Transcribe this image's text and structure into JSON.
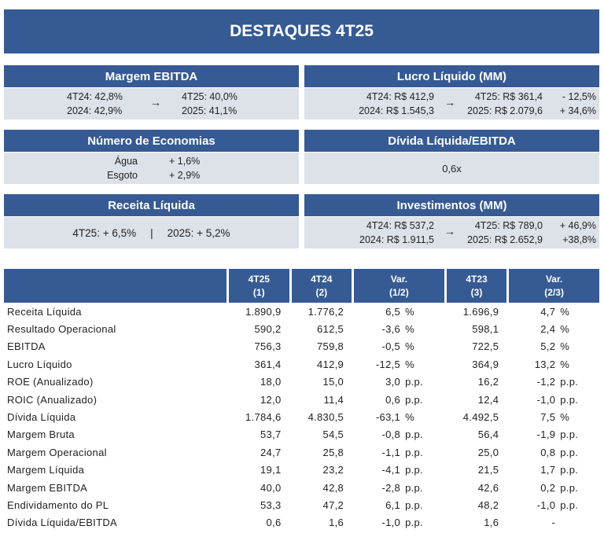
{
  "title": "DESTAQUES 4T25",
  "cards": {
    "margem_ebitda": {
      "title": "Margem EBITDA",
      "l1": "4T24:  42,8%",
      "l2": "2024:  42,9%",
      "r1": "4T25:  40,0%",
      "r2": "2025:  41,1%",
      "arrow": "→"
    },
    "lucro": {
      "title": "Lucro Líquido (MM)",
      "l1": "4T24: R$ 412,9",
      "l2": "2024: R$ 1.545,3",
      "r1": "4T25: R$ 361,4",
      "r2": "2025: R$ 2.079,6",
      "v1": "- 12,5%",
      "v2": "+ 34,6%",
      "arrow": "→"
    },
    "economias": {
      "title": "Número de Economias",
      "a_label": "Água",
      "a_val": "+ 1,6%",
      "e_label": "Esgoto",
      "e_val": "+ 2,9%"
    },
    "divida": {
      "title": "Dívida Líquida/EBITDA",
      "value": "0,6x"
    },
    "receita": {
      "title": "Receita Líquida",
      "left": "4T25: + 6,5%",
      "sep": "|",
      "right": "2025: + 5,2%"
    },
    "invest": {
      "title": "Investimentos (MM)",
      "l1": "4T24: R$ 537,2",
      "l2": "2024: R$ 1.911,5",
      "r1": "4T25: R$ 789,0",
      "r2": "2025: R$ 2.652,9",
      "v1": "+ 46,9%",
      "v2": "+38,8%",
      "arrow": "→"
    }
  },
  "table": {
    "headers": [
      [
        "4T25",
        "(1)"
      ],
      [
        "4T24",
        "(2)"
      ],
      [
        "Var.",
        "(1/2)"
      ],
      [
        "4T23",
        "(3)"
      ],
      [
        "Var.",
        "(2/3)"
      ]
    ],
    "rows": [
      [
        "Receita Líquida",
        "1.890,9",
        "1.776,2",
        "6,5",
        "%",
        "1.696,9",
        "4,7",
        "%"
      ],
      [
        "Resultado Operacional",
        "590,2",
        "612,5",
        "-3,6",
        "%",
        "598,1",
        "2,4",
        "%"
      ],
      [
        "EBITDA",
        "756,3",
        "759,8",
        "-0,5",
        "%",
        "722,5",
        "5,2",
        "%"
      ],
      [
        "Lucro Líquido",
        "361,4",
        "412,9",
        "-12,5",
        "%",
        "364,9",
        "13,2",
        "%"
      ],
      [
        "ROE (Anualizado)",
        "18,0",
        "15,0",
        "3,0",
        "p.p.",
        "16,2",
        "-1,2",
        "p.p."
      ],
      [
        "ROIC (Anualizado)",
        "12,0",
        "11,4",
        "0,6",
        "p.p.",
        "12,4",
        "-1,0",
        "p.p."
      ],
      [
        "Dívida Líquida",
        "1.784,6",
        "4.830,5",
        "-63,1",
        "%",
        "4.492,5",
        "7,5",
        "%"
      ],
      [
        "Margem Bruta",
        "53,7",
        "54,5",
        "-0,8",
        "p.p.",
        "56,4",
        "-1,9",
        "p.p."
      ],
      [
        "Margem Operacional",
        "24,7",
        "25,8",
        "-1,1",
        "p.p.",
        "25,0",
        "0,8",
        "p.p."
      ],
      [
        "Margem Líquida",
        "19,1",
        "23,2",
        "-4,1",
        "p.p.",
        "21,5",
        "1,7",
        "p.p."
      ],
      [
        "Margem EBITDA",
        "40,0",
        "42,8",
        "-2,8",
        "p.p.",
        "42,6",
        "0,2",
        "p.p."
      ],
      [
        "Endividamento do PL",
        "53,3",
        "47,2",
        "6,1",
        "p.p.",
        "48,2",
        "-1,0",
        "p.p."
      ],
      [
        "Dívida Líquida/EBITDA",
        "0,6",
        "1,6",
        "-1,0",
        "p.p.",
        "1,6",
        "-",
        ""
      ]
    ]
  }
}
